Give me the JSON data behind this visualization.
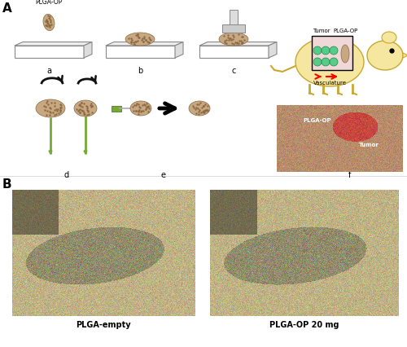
{
  "panel_A_label": "A",
  "panel_B_label": "B",
  "label_a": "a",
  "label_b": "b",
  "label_c": "c",
  "label_d": "d",
  "label_e": "e",
  "label_f": "f",
  "text_plga_op_top": "PLGA-OP",
  "text_tumor": "Tumor",
  "text_plga_op_mouse": "PLGA-OP",
  "text_vasculature": "Vasculature",
  "text_tumor_photo": "Tumor",
  "text_plga_op_photo": "PLGA-OP",
  "text_plga_empty": "PLGA-empty",
  "text_plga_op_20mg": "PLGA-OP 20 mg",
  "bg_color": "#ffffff",
  "fig_width": 5.0,
  "fig_height": 4.27,
  "slab_color_face": "#ffffff",
  "slab_color_top": "#eeeeee",
  "slab_color_right": "#dddddd",
  "slab_edge": "#888888",
  "granule_color": "#c8a882",
  "granule_edge": "#8a6840",
  "needle_color": "#77aa33",
  "mouse_body_color": "#f5e6a0",
  "mouse_edge": "#c8a830",
  "tumor_cell_color": "#55cc88",
  "arrow_color": "#111111"
}
